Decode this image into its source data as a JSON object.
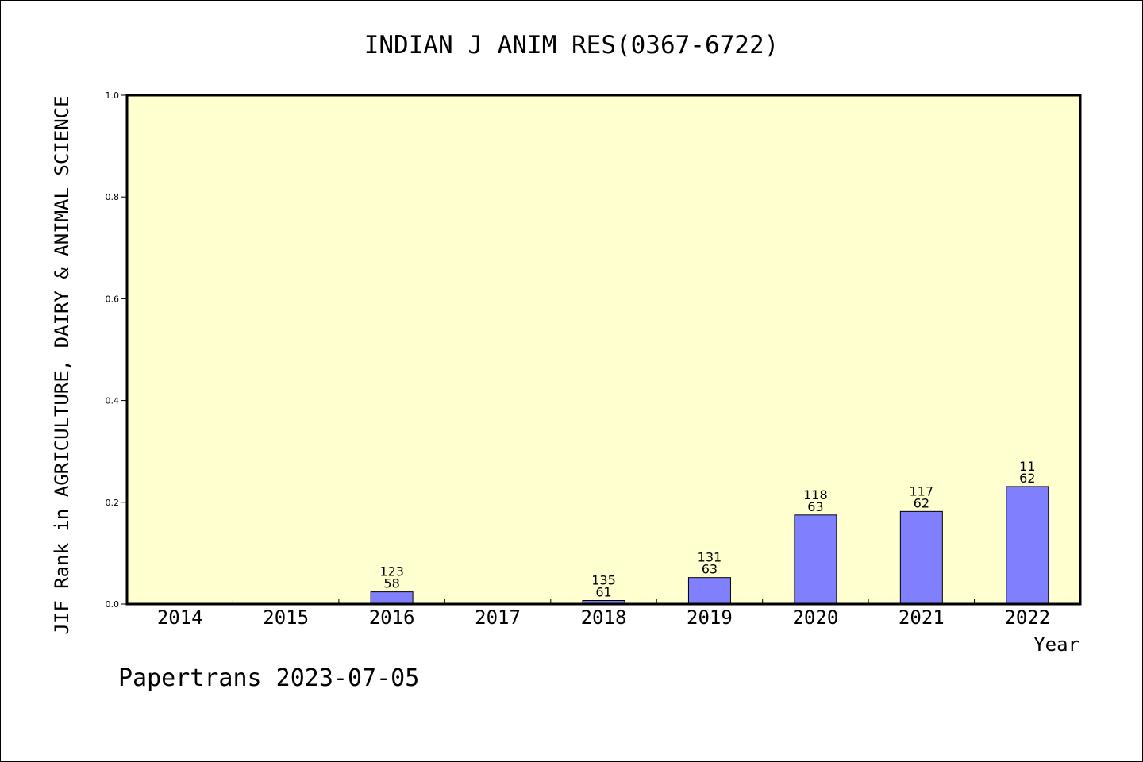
{
  "chart_data": {
    "type": "bar",
    "title": "INDIAN J ANIM RES(0367-6722)",
    "xlabel": "Year",
    "ylabel": "JIF Rank in AGRICULTURE, DAIRY & ANIMAL SCIENCE",
    "categories": [
      "2014",
      "2015",
      "2016",
      "2017",
      "2018",
      "2019",
      "2020",
      "2021",
      "2022"
    ],
    "values": [
      null,
      null,
      0.024,
      null,
      0.007,
      0.052,
      0.175,
      0.182,
      0.231
    ],
    "bar_labels": [
      null,
      null,
      {
        "total": "123",
        "rank": "58"
      },
      null,
      {
        "total": "135",
        "rank": "61"
      },
      {
        "total": "131",
        "rank": "63"
      },
      {
        "total": "118",
        "rank": "63"
      },
      {
        "total": "117",
        "rank": "62"
      },
      {
        "total": "11",
        "rank": "62"
      }
    ],
    "ylim": [
      0,
      1.0
    ],
    "yticks": [
      "0.0",
      "0.2",
      "0.4",
      "0.6",
      "0.8",
      "1.0"
    ],
    "grid": false,
    "colors": {
      "bar": "#8080ff",
      "plot_bg": "#ffffd0"
    }
  },
  "footer": {
    "watermark": "Papertrans 2023-07-05"
  }
}
